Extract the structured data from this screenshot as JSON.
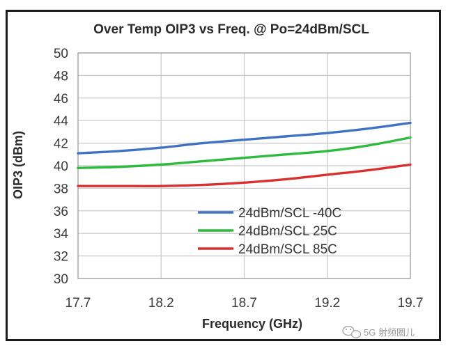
{
  "chart_data": {
    "type": "line",
    "title": "Over Temp OIP3 vs Freq. @ Po=24dBm/SCL",
    "xlabel": "Frequency (GHz)",
    "ylabel": "OIP3 (dBm)",
    "xlim": [
      17.7,
      19.7
    ],
    "ylim": [
      30,
      50
    ],
    "x_ticks": [
      "17.7",
      "18.2",
      "18.7",
      "19.2",
      "19.7"
    ],
    "y_ticks": [
      "30",
      "32",
      "34",
      "36",
      "38",
      "40",
      "42",
      "44",
      "46",
      "48",
      "50"
    ],
    "grid": true,
    "legend_position": "bottom-right",
    "series": [
      {
        "name": "24dBm/SCL -40C",
        "color": "#3f73c2",
        "x": [
          17.7,
          17.95,
          18.2,
          18.45,
          18.7,
          18.95,
          19.2,
          19.45,
          19.7
        ],
        "y": [
          41.1,
          41.3,
          41.6,
          42.0,
          42.3,
          42.6,
          42.9,
          43.3,
          43.8
        ]
      },
      {
        "name": "24dBm/SCL 25C",
        "color": "#2dbb3d",
        "x": [
          17.7,
          17.95,
          18.2,
          18.45,
          18.7,
          18.95,
          19.2,
          19.45,
          19.7
        ],
        "y": [
          39.8,
          39.9,
          40.1,
          40.4,
          40.7,
          41.0,
          41.3,
          41.8,
          42.5
        ]
      },
      {
        "name": "24dBm/SCL 85C",
        "color": "#d9302f",
        "x": [
          17.7,
          17.95,
          18.2,
          18.45,
          18.7,
          18.95,
          19.2,
          19.45,
          19.7
        ],
        "y": [
          38.2,
          38.2,
          38.2,
          38.3,
          38.5,
          38.8,
          39.2,
          39.6,
          40.1
        ]
      }
    ]
  },
  "watermark": {
    "text": "5G 射频圈儿",
    "icon": "wechat-icon"
  }
}
